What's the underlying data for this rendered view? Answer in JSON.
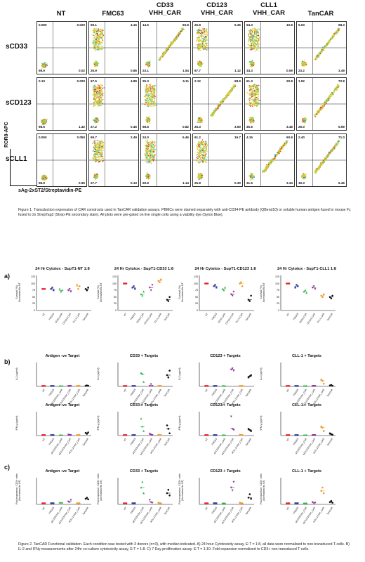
{
  "fig1": {
    "columns": [
      "NT",
      "FMC63",
      "CD33\nVHH_CAR",
      "CD123\nVHH_CAR",
      "CLL1\nVHH_CAR",
      "TanCAR"
    ],
    "rows": [
      "sCD33",
      "sCD123",
      "sCLL1"
    ],
    "quadrants": [
      [
        [
          "0.090",
          "0.020",
          "98.9",
          "0.02"
        ],
        [
          "69.1",
          "4.16",
          "25.9",
          "0.86"
        ],
        [
          "14.5",
          "60.8",
          "23.1",
          "1.54"
        ],
        [
          "25.8",
          "5.35",
          "67.7",
          "1.12"
        ],
        [
          "54.3",
          "10.8",
          "34.3",
          "0.59"
        ],
        [
          "5.03",
          "68.3",
          "23.2",
          "3.49"
        ]
      ],
      [
        [
          "0.13",
          "0.020",
          "98.5",
          "1.32"
        ],
        [
          "67.5",
          "4.89",
          "27.2",
          "0.45"
        ],
        [
          "25.3",
          "5.11",
          "68.8",
          "0.82"
        ],
        [
          "2.12",
          "68.9",
          "25.3",
          "3.60"
        ],
        [
          "61.3",
          "20.8",
          "35.6",
          "3.48"
        ],
        [
          "1.52",
          "72.8",
          "26.0",
          "5.69"
        ]
      ],
      [
        [
          "0.050",
          "0.050",
          "98.9",
          "0.95"
        ],
        [
          "69.7",
          "2.49",
          "27.7",
          "0.13"
        ],
        [
          "24.0",
          "5.46",
          "69.8",
          "1.14"
        ],
        [
          "61.2",
          "16.7",
          "25.8",
          "0.30"
        ],
        [
          "4.16",
          "60.9",
          "31.6",
          "3.34"
        ],
        [
          "2.40",
          "71.0",
          "19.3",
          "6.46"
        ]
      ]
    ],
    "yaxis": "ROR8-APC",
    "xaxis": "sAg-2xST2/Streptavidin-PE",
    "caption": "Figure 1. Transduction expression of CAR constructs used in TanCAR validation assays. PBMCs were stained separately with anti-CD34-PE antibody (QBend10) or soluble human antigen fused to mouse Fc fused to 2x StrepTag2 (Strep-PE secondary stain). All plots were pre-gated on live single cells using a viability dye (Sytox Blue)."
  },
  "fig2": {
    "xlabels": [
      "NT",
      "FMC63",
      "CD33 CAR",
      "CD123 CAR",
      "CLL1 CAR",
      "TanCAR"
    ],
    "xlabels_c": [
      "NT",
      "FMC63",
      "aCD33VHH_CAR",
      "aCD123VHH_CAR",
      "aCLL1VHH_CAR",
      "TanCAR"
    ],
    "colors": [
      "#e8262c",
      "#34409a",
      "#2bb34a",
      "#8a2f96",
      "#f39a2c",
      "#111111"
    ],
    "panel_a": {
      "letter": "a)",
      "ylabel": "Survival (%)\nNormalised to NT",
      "titles": [
        "24 Hr Cytotox - SupT1-NT 1:8",
        "24 Hr Cytotox - SupT1-CD33 1:8",
        "24 Hr Cytotox - SupT1-CD123 1:8",
        "24 Hr Cytotox - SupT1-CLL1 1:8"
      ],
      "yticks": [
        "125",
        "100",
        "75",
        "50",
        "25",
        "0"
      ]
    },
    "panel_b": {
      "letter": "b)",
      "titles": [
        "Antigen -ve Target",
        "CD33 + Targets",
        "CD123 + Targets",
        "CLL-1 + Targets"
      ],
      "ylabel_top": "IL2 (pg/ml)",
      "ylabel_bottom": "IFN-γ (pg/ml)"
    },
    "panel_c": {
      "letter": "c)",
      "titles": [
        "Antigen -ve Target",
        "CD33 + Targets",
        "CD123 + Targets",
        "CLL-1 + Targets"
      ],
      "ylabel": "Fold expansion: CD3+ cells\n(Normalised to NT)"
    },
    "caption": "Figure 2. TanCAR Functional validation. Each condition was tested with 3 donors (n=3), with median indicated. A) 24 hour Cytotoxicity assay, E:T = 1:8, all data were normalised to non-transduced T-cells. B) IL-2 and IFNy measurements after 24hr co-culture cytotoxicity assay, E:T = 1:8. C) 7 Day proliferation assay. E:T = 1:10. Fold expansion normalised to CD3+ non-transduced T-cells."
  },
  "chart_data": [
    {
      "type": "scatter",
      "title": "24 Hr Cytotox - SupT1-NT 1:8",
      "categories": [
        "NT",
        "FMC63",
        "CD33 CAR",
        "CD123 CAR",
        "CLL1 CAR",
        "TanCAR"
      ],
      "ylim": [
        0,
        125
      ],
      "series": [
        {
          "values": [
            [
              80,
              80,
              80
            ],
            [
              80,
              85,
              75
            ],
            [
              80,
              70,
              75
            ],
            [
              75,
              80,
              70
            ],
            [
              95,
              80,
              90
            ],
            [
              80,
              75,
              85
            ]
          ]
        }
      ]
    },
    {
      "type": "scatter",
      "title": "24 Hr Cytotox - SupT1-CD33 1:8",
      "categories": [
        "NT",
        "FMC63",
        "CD33 CAR",
        "CD123 CAR",
        "CLL1 CAR",
        "TanCAR"
      ],
      "ylim": [
        0,
        125
      ],
      "series": [
        {
          "values": [
            [
              100,
              100,
              100
            ],
            [
              85,
              90,
              80
            ],
            [
              60,
              55,
              70
            ],
            [
              85,
              75,
              95
            ],
            [
              110,
              105,
              115
            ],
            [
              40,
              35,
              50
            ]
          ]
        }
      ]
    },
    {
      "type": "scatter",
      "title": "24 Hr Cytotox - SupT1-CD123 1:8",
      "categories": [
        "NT",
        "FMC63",
        "CD33 CAR",
        "CD123 CAR",
        "CLL1 CAR",
        "TanCAR"
      ],
      "ylim": [
        0,
        125
      ],
      "series": [
        {
          "values": [
            [
              100,
              100,
              100
            ],
            [
              90,
              95,
              85
            ],
            [
              80,
              75,
              85
            ],
            [
              60,
              55,
              70
            ],
            [
              100,
              105,
              90
            ],
            [
              40,
              35,
              55
            ]
          ]
        }
      ]
    },
    {
      "type": "scatter",
      "title": "24 Hr Cytotox - SupT1-CLL1 1:8",
      "categories": [
        "NT",
        "FMC63",
        "CD33 CAR",
        "CD123 CAR",
        "CLL1 CAR",
        "TanCAR"
      ],
      "ylim": [
        0,
        125
      ],
      "series": [
        {
          "values": [
            [
              100,
              100,
              100
            ],
            [
              85,
              95,
              90
            ],
            [
              70,
              75,
              65
            ],
            [
              85,
              90,
              80
            ],
            [
              55,
              50,
              60
            ],
            [
              50,
              45,
              55
            ]
          ]
        }
      ]
    }
  ]
}
